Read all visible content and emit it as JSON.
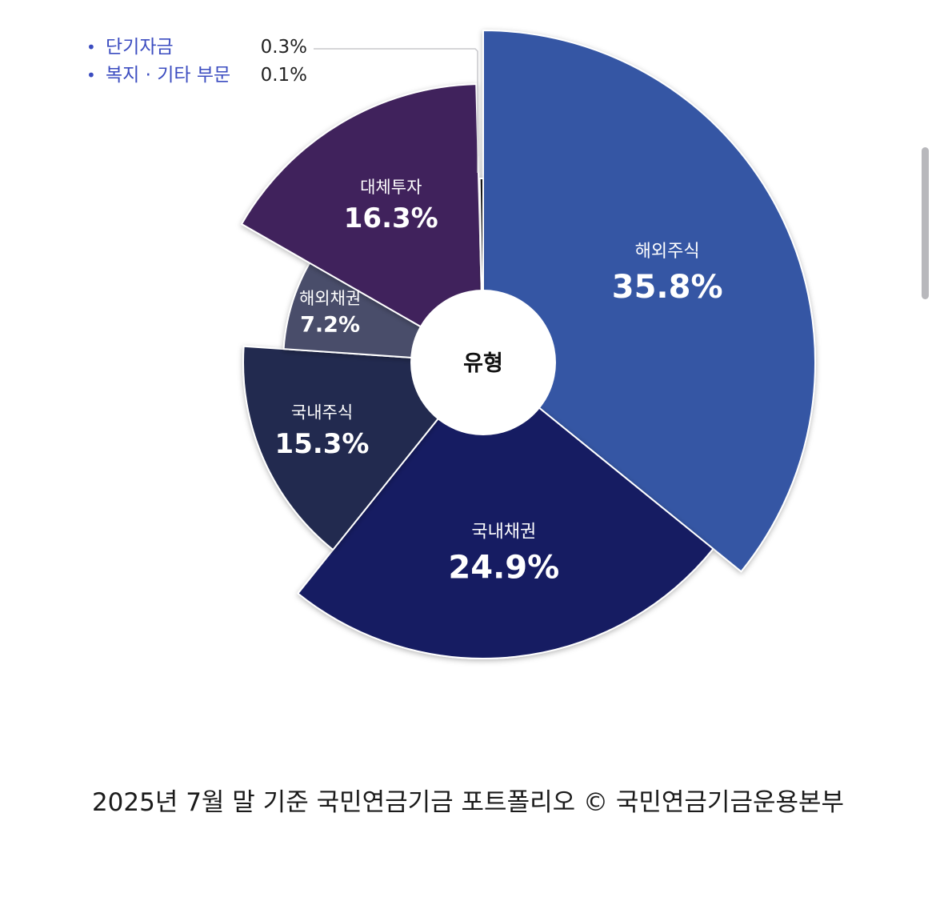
{
  "chart_data": {
    "type": "pie",
    "variant": "rose",
    "center_label": "유형",
    "units": "%",
    "slices": [
      {
        "name": "해외주식",
        "value": 35.8,
        "display": "35.8%",
        "color": "#3457a4",
        "label_weight": "major"
      },
      {
        "name": "국내채권",
        "value": 24.9,
        "display": "24.9%",
        "color": "#161c62",
        "label_weight": "major"
      },
      {
        "name": "국내주식",
        "value": 15.3,
        "display": "15.3%",
        "color": "#222b4f",
        "label_weight": "medium"
      },
      {
        "name": "해외채권",
        "value": 7.2,
        "display": "7.2%",
        "color": "#4a4d6b",
        "label_weight": "minor"
      },
      {
        "name": "대체투자",
        "value": 16.3,
        "display": "16.3%",
        "color": "#41245b",
        "label_weight": "medium"
      },
      {
        "name": "복지 · 기타 부문",
        "value": 0.1,
        "display": "0.1%",
        "color": "#2a2a33",
        "label_weight": "legend"
      },
      {
        "name": "단기자금",
        "value": 0.3,
        "display": "0.3%",
        "color": "#151515",
        "label_weight": "legend"
      }
    ],
    "legend": {
      "placement": "top-left",
      "items": [
        {
          "name": "단기자금",
          "display": "0.3%"
        },
        {
          "name": "복지 · 기타 부문",
          "display": "0.1%"
        }
      ],
      "bullet": "•",
      "text_color": "#3b4cc0"
    }
  },
  "caption": "2025년 7월 말 기준 국민연금기금 포트폴리오 © 국민연금기금운용본부"
}
